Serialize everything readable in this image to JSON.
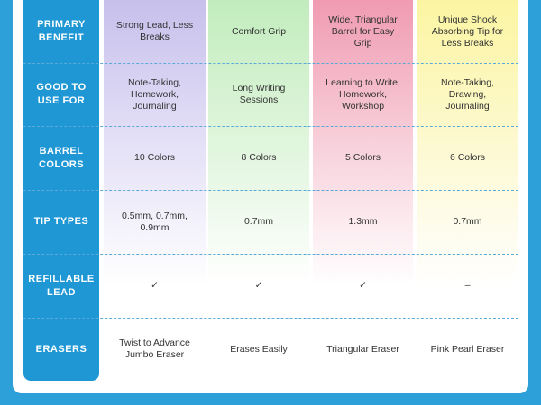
{
  "table": {
    "rows": [
      {
        "header": "PRIMARY BENEFIT",
        "cells": [
          "Strong Lead, Less Breaks",
          "Comfort Grip",
          "Wide, Triangular Barrel for Easy Grip",
          "Unique Shock Absorbing Tip for Less Breaks"
        ]
      },
      {
        "header": "GOOD TO USE FOR",
        "cells": [
          "Note-Taking, Homework, Journaling",
          "Long Writing Sessions",
          "Learning to Write, Homework, Workshop",
          "Note-Taking, Drawing, Journaling"
        ]
      },
      {
        "header": "BARREL COLORS",
        "cells": [
          "10 Colors",
          "8 Colors",
          "5 Colors",
          "6 Colors"
        ]
      },
      {
        "header": "TIP TYPES",
        "cells": [
          "0.5mm, 0.7mm, 0.9mm",
          "0.7mm",
          "1.3mm",
          "0.7mm"
        ]
      },
      {
        "header": "REFILLABLE LEAD",
        "cells": [
          "✓",
          "✓",
          "✓",
          "–"
        ]
      },
      {
        "header": "ERASERS",
        "cells": [
          "Twist to Advance Jumbo Eraser",
          "Erases Easily",
          "Triangular Eraser",
          "Pink Pearl Eraser"
        ]
      }
    ]
  }
}
